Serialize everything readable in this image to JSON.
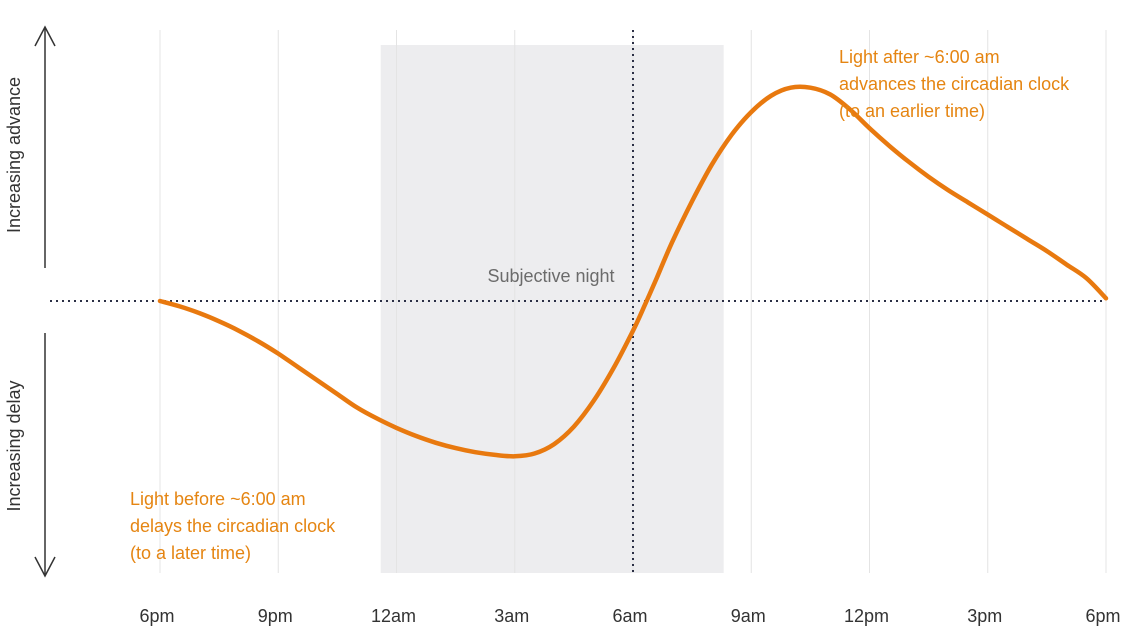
{
  "chart_data": {
    "type": "line",
    "categories": [
      "6pm",
      "9pm",
      "12am",
      "3am",
      "6am",
      "9am",
      "12pm",
      "3pm",
      "6pm"
    ],
    "x_hours": [
      0,
      3,
      6,
      9,
      12,
      15,
      18,
      21,
      24
    ],
    "series": [
      {
        "color": "#e8790f",
        "points": [
          [
            0,
            0.0
          ],
          [
            0.5,
            -0.04
          ],
          [
            1,
            -0.09
          ],
          [
            1.5,
            -0.15
          ],
          [
            2,
            -0.22
          ],
          [
            2.5,
            -0.3
          ],
          [
            3,
            -0.39
          ],
          [
            3.5,
            -0.49
          ],
          [
            4,
            -0.59
          ],
          [
            4.5,
            -0.69
          ],
          [
            5,
            -0.79
          ],
          [
            5.5,
            -0.87
          ],
          [
            6,
            -0.94
          ],
          [
            6.5,
            -1.0
          ],
          [
            7,
            -1.05
          ],
          [
            7.5,
            -1.09
          ],
          [
            8,
            -1.12
          ],
          [
            8.5,
            -1.14
          ],
          [
            9,
            -1.15
          ],
          [
            9.5,
            -1.13
          ],
          [
            10,
            -1.06
          ],
          [
            10.5,
            -0.93
          ],
          [
            11,
            -0.74
          ],
          [
            11.5,
            -0.5
          ],
          [
            12,
            -0.22
          ],
          [
            12.3,
            -0.03
          ],
          [
            12.6,
            0.17
          ],
          [
            13,
            0.44
          ],
          [
            13.5,
            0.74
          ],
          [
            14,
            1.01
          ],
          [
            14.5,
            1.23
          ],
          [
            15,
            1.4
          ],
          [
            15.5,
            1.52
          ],
          [
            16,
            1.58
          ],
          [
            16.5,
            1.58
          ],
          [
            17,
            1.53
          ],
          [
            17.5,
            1.42
          ],
          [
            18,
            1.28
          ],
          [
            18.5,
            1.15
          ],
          [
            19,
            1.03
          ],
          [
            19.5,
            0.92
          ],
          [
            20,
            0.82
          ],
          [
            20.5,
            0.73
          ],
          [
            21,
            0.64
          ],
          [
            21.5,
            0.55
          ],
          [
            22,
            0.46
          ],
          [
            22.5,
            0.37
          ],
          [
            23,
            0.27
          ],
          [
            23.5,
            0.17
          ],
          [
            24,
            0.02
          ]
        ]
      }
    ],
    "shaded_region": {
      "label": "Subjective night",
      "x_start": 5.6,
      "x_end": 14.3
    },
    "vline_x": 12,
    "xlim": [
      -3,
      24.5
    ],
    "ylim": [
      -1.65,
      1.8
    ],
    "grid": "vertical",
    "axis_labels": {
      "up": "Increasing advance",
      "down": "Increasing delay"
    },
    "annotations": [
      {
        "id": "advance",
        "lines": [
          "Light after ~6:00 am",
          "advances the circadian clock",
          "(to an earlier time)"
        ]
      },
      {
        "id": "delay",
        "lines": [
          "Light before ~6:00 am",
          "delays the circadian clock",
          "(to a later time)"
        ]
      }
    ]
  }
}
